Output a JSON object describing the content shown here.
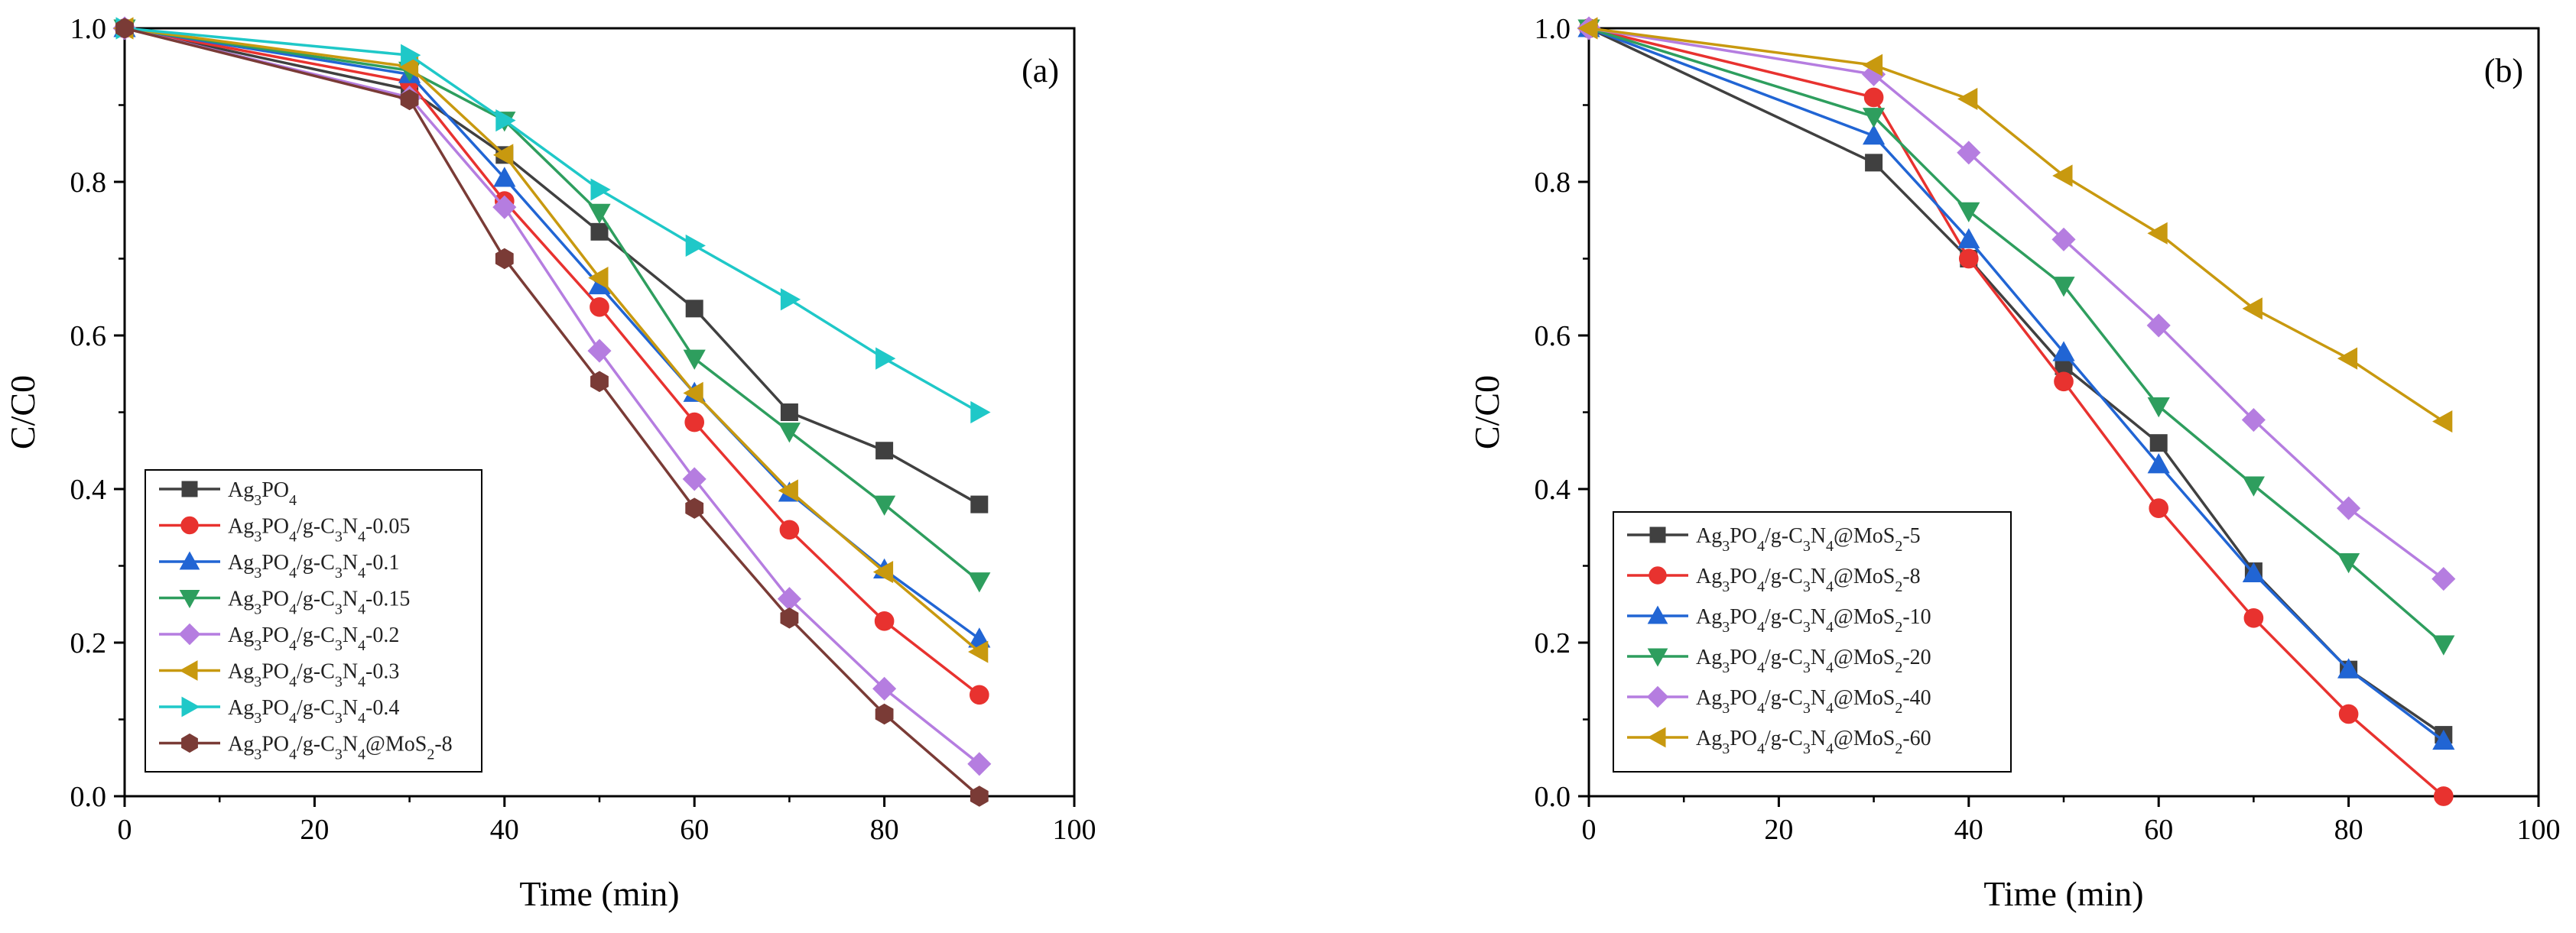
{
  "chart_data": [
    {
      "type": "line",
      "panel_label": "(a)",
      "xlabel": "Time (min)",
      "ylabel": "C/C0",
      "xlim": [
        0,
        100
      ],
      "ylim": [
        0,
        1.0
      ],
      "xticks": [
        "0",
        "20",
        "40",
        "60",
        "80",
        "100"
      ],
      "yticks": [
        "0.0",
        "0.2",
        "0.4",
        "0.6",
        "0.8",
        "1.0"
      ],
      "legend_position": "bottom-left",
      "x": [
        0,
        30,
        40,
        50,
        60,
        70,
        80,
        90
      ],
      "series": [
        {
          "name": "Ag3PO4",
          "color": "#404040",
          "marker": "square",
          "values": [
            1.0,
            0.92,
            0.835,
            0.735,
            0.635,
            0.5,
            0.45,
            0.38
          ]
        },
        {
          "name": "Ag3PO4/g-C3N4-0.05",
          "color": "#e8322f",
          "marker": "circle",
          "values": [
            1.0,
            0.93,
            0.775,
            0.637,
            0.487,
            0.347,
            0.228,
            0.132
          ]
        },
        {
          "name": "Ag3PO4/g-C3N4-0.1",
          "color": "#2165d4",
          "marker": "triangle-up",
          "values": [
            1.0,
            0.94,
            0.805,
            0.665,
            0.525,
            0.395,
            0.295,
            0.205
          ]
        },
        {
          "name": "Ag3PO4/g-C3N4-0.15",
          "color": "#2e9e5e",
          "marker": "triangle-down",
          "values": [
            1.0,
            0.945,
            0.88,
            0.76,
            0.57,
            0.475,
            0.38,
            0.28
          ]
        },
        {
          "name": "Ag3PO4/g-C3N4-0.2",
          "color": "#b57de0",
          "marker": "diamond",
          "values": [
            1.0,
            0.91,
            0.767,
            0.58,
            0.413,
            0.257,
            0.14,
            0.042
          ]
        },
        {
          "name": "Ag3PO4/g-C3N4-0.3",
          "color": "#c8990f",
          "marker": "triangle-left",
          "values": [
            1.0,
            0.95,
            0.835,
            0.675,
            0.525,
            0.398,
            0.292,
            0.188
          ]
        },
        {
          "name": "Ag3PO4/g-C3N4-0.4",
          "color": "#1fc8c8",
          "marker": "triangle-right",
          "values": [
            1.0,
            0.965,
            0.88,
            0.79,
            0.717,
            0.647,
            0.57,
            0.5
          ]
        },
        {
          "name": "Ag3PO4/g-C3N4@MoS2-8",
          "color": "#7a3b36",
          "marker": "hexagon",
          "values": [
            1.0,
            0.907,
            0.7,
            0.54,
            0.375,
            0.232,
            0.107,
            0.0
          ]
        }
      ]
    },
    {
      "type": "line",
      "panel_label": "(b)",
      "xlabel": "Time (min)",
      "ylabel": "C/C0",
      "xlim": [
        0,
        100
      ],
      "ylim": [
        0,
        1.0
      ],
      "xticks": [
        "0",
        "20",
        "40",
        "60",
        "80",
        "100"
      ],
      "yticks": [
        "0.0",
        "0.2",
        "0.4",
        "0.6",
        "0.8",
        "1.0"
      ],
      "legend_position": "bottom-left",
      "x": [
        0,
        30,
        40,
        50,
        60,
        70,
        80,
        90
      ],
      "series": [
        {
          "name": "Ag3PO4/g-C3N4@MoS2-5",
          "color": "#404040",
          "marker": "square",
          "values": [
            1.0,
            0.825,
            0.7,
            0.56,
            0.46,
            0.293,
            0.165,
            0.08
          ]
        },
        {
          "name": "Ag3PO4/g-C3N4@MoS2-8",
          "color": "#e8322f",
          "marker": "circle",
          "values": [
            1.0,
            0.91,
            0.7,
            0.54,
            0.375,
            0.232,
            0.107,
            0.0
          ]
        },
        {
          "name": "Ag3PO4/g-C3N4@MoS2-10",
          "color": "#2165d4",
          "marker": "triangle-up",
          "values": [
            1.0,
            0.86,
            0.725,
            0.578,
            0.432,
            0.29,
            0.165,
            0.072
          ]
        },
        {
          "name": "Ag3PO4/g-C3N4@MoS2-20",
          "color": "#2e9e5e",
          "marker": "triangle-down",
          "values": [
            1.0,
            0.885,
            0.762,
            0.665,
            0.508,
            0.405,
            0.305,
            0.198
          ]
        },
        {
          "name": "Ag3PO4/g-C3N4@MoS2-40",
          "color": "#b57de0",
          "marker": "diamond",
          "values": [
            1.0,
            0.94,
            0.838,
            0.725,
            0.613,
            0.49,
            0.375,
            0.283
          ]
        },
        {
          "name": "Ag3PO4/g-C3N4@MoS2-60",
          "color": "#c8990f",
          "marker": "triangle-left",
          "values": [
            1.0,
            0.952,
            0.908,
            0.808,
            0.733,
            0.635,
            0.57,
            0.488
          ]
        }
      ]
    }
  ]
}
